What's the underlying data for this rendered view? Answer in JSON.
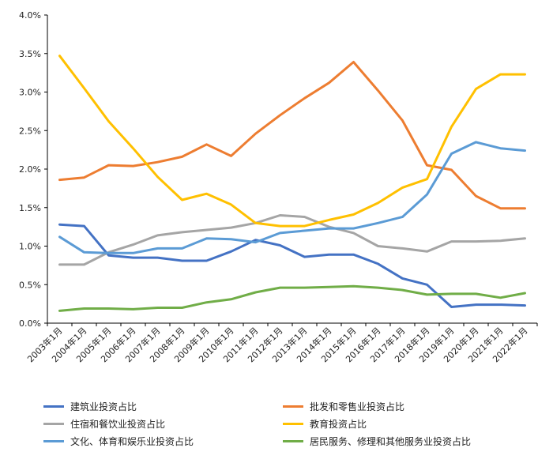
{
  "chart_data": {
    "type": "line",
    "title": "",
    "xlabel": "",
    "ylabel": "",
    "ylim": [
      0,
      4.0
    ],
    "y_ticks": [
      "0.0%",
      "0.5%",
      "1.0%",
      "1.5%",
      "2.0%",
      "2.5%",
      "3.0%",
      "3.5%",
      "4.0%"
    ],
    "y_tick_values": [
      0,
      0.5,
      1.0,
      1.5,
      2.0,
      2.5,
      3.0,
      3.5,
      4.0
    ],
    "categories": [
      "2003年1月",
      "2004年1月",
      "2005年1月",
      "2006年1月",
      "2007年1月",
      "2008年1月",
      "2009年1月",
      "2010年1月",
      "2011年1月",
      "2012年1月",
      "2013年1月",
      "2014年1月",
      "2015年1月",
      "2016年1月",
      "2017年1月",
      "2018年1月",
      "2019年1月",
      "2020年1月",
      "2021年1月",
      "2022年1月"
    ],
    "grid": false,
    "legend_position": "bottom",
    "series": [
      {
        "name": "建筑业投资占比",
        "color": "#4472C4",
        "values": [
          1.28,
          1.26,
          0.88,
          0.85,
          0.85,
          0.81,
          0.81,
          0.93,
          1.08,
          1.01,
          0.86,
          0.89,
          0.89,
          0.77,
          0.58,
          0.5,
          0.21,
          0.24,
          0.24,
          0.23
        ]
      },
      {
        "name": "批发和零售业投资占比",
        "color": "#ED7D31",
        "values": [
          1.86,
          1.89,
          2.05,
          2.04,
          2.09,
          2.16,
          2.32,
          2.17,
          2.46,
          2.7,
          2.92,
          3.12,
          3.39,
          3.02,
          2.63,
          2.05,
          1.99,
          1.65,
          1.49,
          1.49
        ]
      },
      {
        "name": "住宿和餐饮业投资占比",
        "color": "#A5A5A5",
        "values": [
          0.76,
          0.76,
          0.92,
          1.02,
          1.14,
          1.18,
          1.21,
          1.24,
          1.3,
          1.4,
          1.38,
          1.25,
          1.17,
          1.0,
          0.97,
          0.93,
          1.06,
          1.06,
          1.07,
          1.1
        ]
      },
      {
        "name": "教育投资占比",
        "color": "#FFC000",
        "values": [
          3.47,
          3.05,
          2.62,
          2.27,
          1.9,
          1.6,
          1.68,
          1.54,
          1.3,
          1.26,
          1.26,
          1.34,
          1.41,
          1.56,
          1.76,
          1.87,
          2.55,
          3.04,
          3.23,
          3.23
        ]
      },
      {
        "name": "文化、体育和娱乐业投资占比",
        "color": "#5B9BD5",
        "values": [
          1.12,
          0.92,
          0.91,
          0.91,
          0.97,
          0.97,
          1.1,
          1.09,
          1.05,
          1.17,
          1.2,
          1.23,
          1.23,
          1.3,
          1.38,
          1.67,
          2.2,
          2.35,
          2.27,
          2.24
        ]
      },
      {
        "name": "居民服务、修理和其他服务业投资占比",
        "color": "#70AD47",
        "values": [
          0.16,
          0.19,
          0.19,
          0.18,
          0.2,
          0.2,
          0.27,
          0.31,
          0.4,
          0.46,
          0.46,
          0.47,
          0.48,
          0.46,
          0.43,
          0.37,
          0.38,
          0.38,
          0.33,
          0.39
        ]
      }
    ]
  }
}
